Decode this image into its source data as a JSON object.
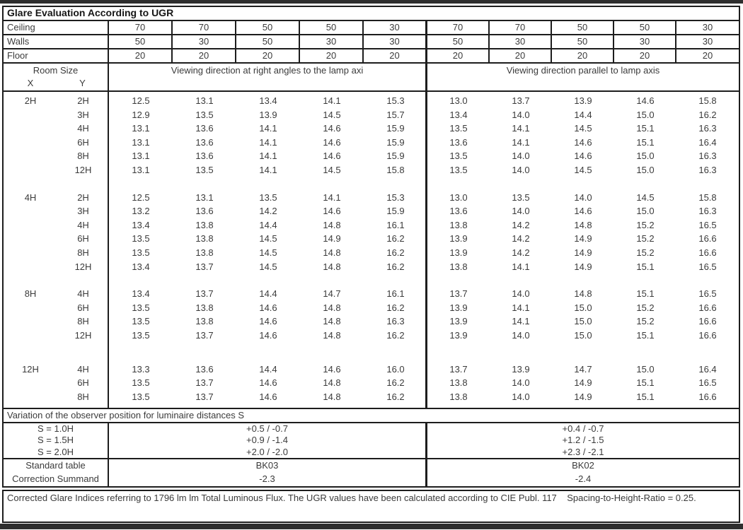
{
  "title": "Glare Evaluation According to UGR",
  "surface_rows": [
    {
      "label": "Ceiling",
      "values": [
        "70",
        "70",
        "50",
        "50",
        "30",
        "70",
        "70",
        "50",
        "50",
        "30"
      ]
    },
    {
      "label": "Walls",
      "values": [
        "50",
        "30",
        "50",
        "30",
        "30",
        "50",
        "30",
        "50",
        "30",
        "30"
      ]
    },
    {
      "label": "Floor",
      "values": [
        "20",
        "20",
        "20",
        "20",
        "20",
        "20",
        "20",
        "20",
        "20",
        "20"
      ]
    }
  ],
  "header": {
    "room_size": "Room Size",
    "x_label": "X",
    "y_label": "Y",
    "left_title": "Viewing direction at right angles to the lamp axi",
    "right_title": "Viewing direction parallel to lamp axis"
  },
  "sections": [
    {
      "x": "2H",
      "rows": [
        {
          "y": "2H",
          "values": [
            "12.5",
            "13.1",
            "13.4",
            "14.1",
            "15.3",
            "13.0",
            "13.7",
            "13.9",
            "14.6",
            "15.8"
          ]
        },
        {
          "y": "3H",
          "values": [
            "12.9",
            "13.5",
            "13.9",
            "14.5",
            "15.7",
            "13.4",
            "14.0",
            "14.4",
            "15.0",
            "16.2"
          ]
        },
        {
          "y": "4H",
          "values": [
            "13.1",
            "13.6",
            "14.1",
            "14.6",
            "15.9",
            "13.5",
            "14.1",
            "14.5",
            "15.1",
            "16.3"
          ]
        },
        {
          "y": "6H",
          "values": [
            "13.1",
            "13.6",
            "14.1",
            "14.6",
            "15.9",
            "13.6",
            "14.1",
            "14.6",
            "15.1",
            "16.4"
          ]
        },
        {
          "y": "8H",
          "values": [
            "13.1",
            "13.6",
            "14.1",
            "14.6",
            "15.9",
            "13.5",
            "14.0",
            "14.6",
            "15.0",
            "16.3"
          ]
        },
        {
          "y": "12H",
          "values": [
            "13.1",
            "13.5",
            "14.1",
            "14.5",
            "15.8",
            "13.5",
            "14.0",
            "14.5",
            "15.0",
            "16.3"
          ]
        }
      ]
    },
    {
      "x": "4H",
      "rows": [
        {
          "y": "2H",
          "values": [
            "12.5",
            "13.1",
            "13.5",
            "14.1",
            "15.3",
            "13.0",
            "13.5",
            "14.0",
            "14.5",
            "15.8"
          ]
        },
        {
          "y": "3H",
          "values": [
            "13.2",
            "13.6",
            "14.2",
            "14.6",
            "15.9",
            "13.6",
            "14.0",
            "14.6",
            "15.0",
            "16.3"
          ]
        },
        {
          "y": "4H",
          "values": [
            "13.4",
            "13.8",
            "14.4",
            "14.8",
            "16.1",
            "13.8",
            "14.2",
            "14.8",
            "15.2",
            "16.5"
          ]
        },
        {
          "y": "6H",
          "values": [
            "13.5",
            "13.8",
            "14.5",
            "14.9",
            "16.2",
            "13.9",
            "14.2",
            "14.9",
            "15.2",
            "16.6"
          ]
        },
        {
          "y": "8H",
          "values": [
            "13.5",
            "13.8",
            "14.5",
            "14.8",
            "16.2",
            "13.9",
            "14.2",
            "14.9",
            "15.2",
            "16.6"
          ]
        },
        {
          "y": "12H",
          "values": [
            "13.4",
            "13.7",
            "14.5",
            "14.8",
            "16.2",
            "13.8",
            "14.1",
            "14.9",
            "15.1",
            "16.5"
          ]
        }
      ]
    },
    {
      "x": "8H",
      "rows": [
        {
          "y": "4H",
          "values": [
            "13.4",
            "13.7",
            "14.4",
            "14.7",
            "16.1",
            "13.7",
            "14.0",
            "14.8",
            "15.1",
            "16.5"
          ]
        },
        {
          "y": "6H",
          "values": [
            "13.5",
            "13.8",
            "14.6",
            "14.8",
            "16.2",
            "13.9",
            "14.1",
            "15.0",
            "15.2",
            "16.6"
          ]
        },
        {
          "y": "8H",
          "values": [
            "13.5",
            "13.8",
            "14.6",
            "14.8",
            "16.3",
            "13.9",
            "14.1",
            "15.0",
            "15.2",
            "16.6"
          ]
        },
        {
          "y": "12H",
          "values": [
            "13.5",
            "13.7",
            "14.6",
            "14.8",
            "16.2",
            "13.9",
            "14.0",
            "15.0",
            "15.1",
            "16.6"
          ]
        }
      ]
    },
    {
      "x": "12H",
      "rows": [
        {
          "y": "4H",
          "values": [
            "13.3",
            "13.6",
            "14.4",
            "14.6",
            "16.0",
            "13.7",
            "13.9",
            "14.7",
            "15.0",
            "16.4"
          ]
        },
        {
          "y": "6H",
          "values": [
            "13.5",
            "13.7",
            "14.6",
            "14.8",
            "16.2",
            "13.8",
            "14.0",
            "14.9",
            "15.1",
            "16.5"
          ]
        },
        {
          "y": "8H",
          "values": [
            "13.5",
            "13.7",
            "14.6",
            "14.8",
            "16.2",
            "13.8",
            "14.0",
            "14.9",
            "15.1",
            "16.6"
          ]
        }
      ]
    }
  ],
  "variation": {
    "title": "Variation of the observer position for luminaire distances S",
    "rows": [
      {
        "label": "S = 1.0H",
        "left": "+0.5 / -0.7",
        "right": "+0.4 / -0.7"
      },
      {
        "label": "S = 1.5H",
        "left": "+0.9 / -1.4",
        "right": "+1.2 / -1.5"
      },
      {
        "label": "S = 2.0H",
        "left": "+2.0 / -2.0",
        "right": "+2.3 / -2.1"
      }
    ]
  },
  "summary": {
    "rows": [
      {
        "label": "Standard table",
        "left": "BK03",
        "right": "BK02"
      },
      {
        "label": "Correction Summand",
        "left": "-2.3",
        "right": "-2.4"
      }
    ]
  },
  "footer": "Corrected Glare Indices referring to 1796 lm lm Total Luminous Flux. The UGR values have been calculated according to CIE Publ. 117    Spacing-to-Height-Ratio = 0.25."
}
